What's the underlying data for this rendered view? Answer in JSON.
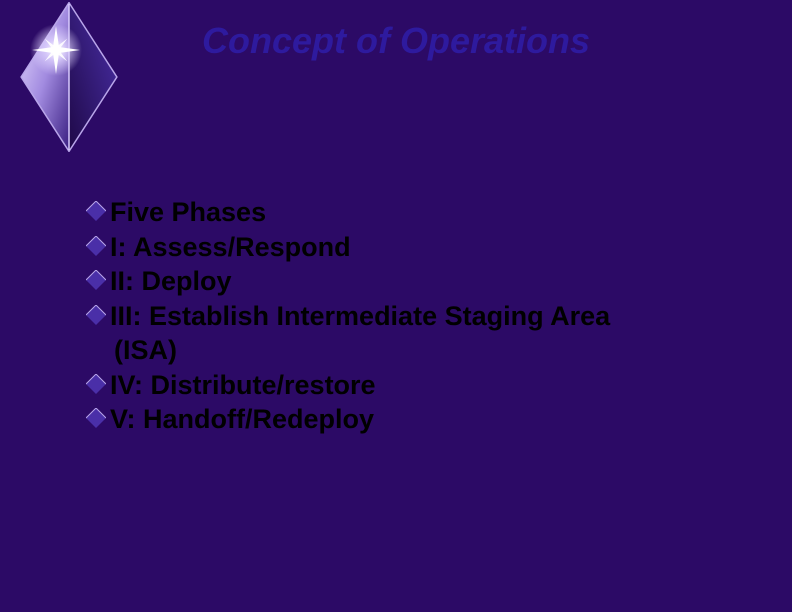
{
  "title": {
    "text": "Concept of Operations",
    "color": "#2e1a9e",
    "fontsize": 36
  },
  "bullets": {
    "items": [
      {
        "text": "Five Phases"
      },
      {
        "text": "I: Assess/Respond"
      },
      {
        "text": "II: Deploy"
      },
      {
        "text": "III: Establish Intermediate Staging Area",
        "cont": "(ISA)"
      },
      {
        "text": "IV: Distribute/restore"
      },
      {
        "text": "V: Handoff/Redeploy"
      }
    ],
    "text_color": "#000000",
    "fontsize": 27,
    "diamond_color": "#4a2fa8",
    "diamond_size": 20
  },
  "background_color": "#2c0a66",
  "logo": {
    "diamond_light": "#c8b4ee",
    "diamond_mid": "#6a4fc0",
    "diamond_dark": "#2a0a5a",
    "star_color": "#ffffff",
    "star_glow": "#d9c8ff"
  }
}
